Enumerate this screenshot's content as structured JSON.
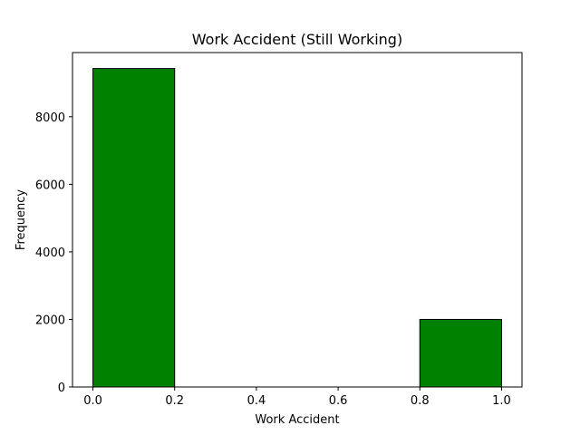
{
  "chart_data": {
    "type": "bar",
    "title": "Work Accident (Still Working)",
    "xlabel": "Work Accident",
    "ylabel": "Frequency",
    "bins": [
      {
        "start": 0.0,
        "end": 0.2,
        "value": 9428
      },
      {
        "start": 0.2,
        "end": 0.4,
        "value": 0
      },
      {
        "start": 0.4,
        "end": 0.6,
        "value": 0
      },
      {
        "start": 0.6,
        "end": 0.8,
        "value": 0
      },
      {
        "start": 0.8,
        "end": 1.0,
        "value": 2000
      }
    ],
    "xlim": [
      -0.05,
      1.05
    ],
    "ylim": [
      0,
      9900
    ],
    "xticks": [
      "0.0",
      "0.2",
      "0.4",
      "0.6",
      "0.8",
      "1.0"
    ],
    "yticks": [
      "0",
      "2000",
      "4000",
      "6000",
      "8000"
    ],
    "bar_color": "#008000",
    "edge_color": "#000000",
    "grid": false,
    "legend": false
  }
}
